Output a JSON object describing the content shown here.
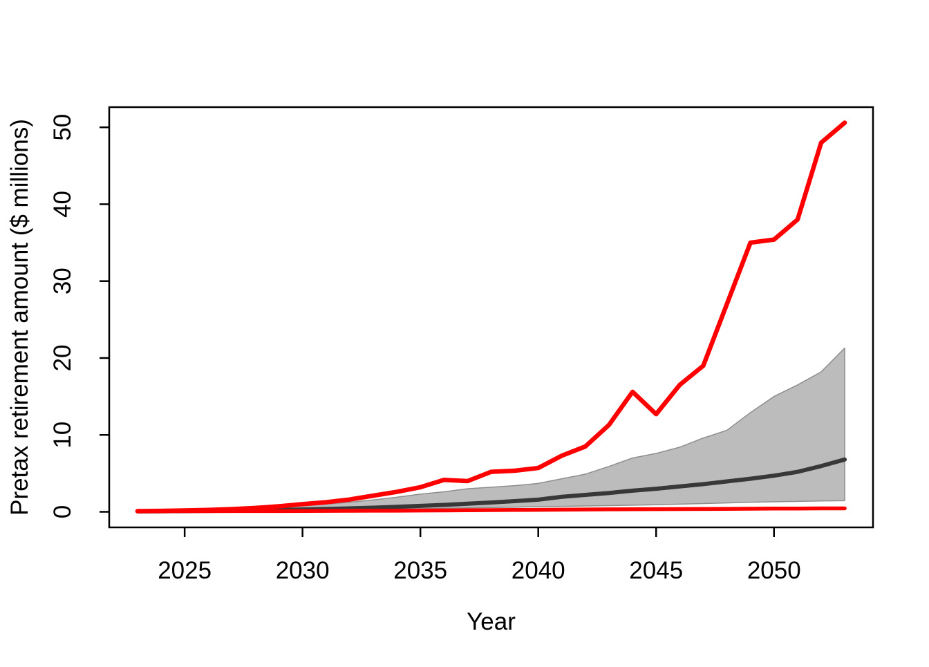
{
  "figure": {
    "background": "#ffffff",
    "title": ""
  },
  "chart_data": {
    "type": "line",
    "title": "",
    "xlabel": "Year",
    "ylabel": "Pretax retirement amount ($ millions)",
    "xlim": [
      2023,
      2053
    ],
    "ylim": [
      0,
      50.6
    ],
    "grid": false,
    "legend": null,
    "axis_color": "#000000",
    "x_ticks": [
      2025,
      2030,
      2035,
      2040,
      2045,
      2050
    ],
    "x_tick_labels": [
      "2025",
      "2030",
      "2035",
      "2040",
      "2045",
      "2050"
    ],
    "y_ticks": [
      0,
      10,
      20,
      30,
      40,
      50
    ],
    "y_tick_labels": [
      "0",
      "10",
      "20",
      "30",
      "40",
      "50"
    ],
    "x": [
      2023,
      2024,
      2025,
      2026,
      2027,
      2028,
      2029,
      2030,
      2031,
      2032,
      2033,
      2034,
      2035,
      2036,
      2037,
      2038,
      2039,
      2040,
      2041,
      2042,
      2043,
      2044,
      2045,
      2046,
      2047,
      2048,
      2049,
      2050,
      2051,
      2052,
      2053
    ],
    "band": {
      "name": "quantile-band",
      "fill": "#bcbcbc",
      "edge": "#8d8d8d",
      "upper": [
        0.1,
        0.13,
        0.18,
        0.25,
        0.33,
        0.45,
        0.6,
        0.8,
        1.0,
        1.25,
        1.55,
        1.9,
        2.3,
        2.6,
        3.0,
        3.2,
        3.4,
        3.7,
        4.3,
        4.9,
        5.9,
        7.0,
        7.6,
        8.4,
        9.6,
        10.6,
        12.9,
        15.0,
        16.5,
        18.2,
        21.3
      ],
      "lower": [
        0.07,
        0.08,
        0.09,
        0.11,
        0.13,
        0.15,
        0.18,
        0.21,
        0.24,
        0.28,
        0.32,
        0.36,
        0.41,
        0.46,
        0.51,
        0.56,
        0.61,
        0.66,
        0.71,
        0.76,
        0.81,
        0.86,
        0.92,
        1.0,
        1.08,
        1.16,
        1.24,
        1.3,
        1.36,
        1.41,
        1.45
      ]
    },
    "series": [
      {
        "name": "median-trajectory",
        "color": "#383838",
        "width": 6,
        "values": [
          0.05,
          0.07,
          0.09,
          0.12,
          0.15,
          0.19,
          0.24,
          0.3,
          0.37,
          0.45,
          0.54,
          0.65,
          0.77,
          0.9,
          1.05,
          1.21,
          1.39,
          1.58,
          1.95,
          2.2,
          2.45,
          2.75,
          3.0,
          3.3,
          3.6,
          3.95,
          4.3,
          4.7,
          5.2,
          5.95,
          6.8
        ]
      },
      {
        "name": "minimum-trajectory",
        "color": "#ff0000",
        "width": 5.5,
        "values": [
          0.08,
          0.08,
          0.09,
          0.09,
          0.1,
          0.1,
          0.1,
          0.11,
          0.12,
          0.13,
          0.14,
          0.15,
          0.17,
          0.18,
          0.2,
          0.22,
          0.24,
          0.26,
          0.28,
          0.3,
          0.32,
          0.33,
          0.35,
          0.36,
          0.37,
          0.38,
          0.4,
          0.42,
          0.43,
          0.45,
          0.45
        ]
      },
      {
        "name": "maximum-trajectory",
        "color": "#ff0000",
        "width": 6.5,
        "values": [
          0.09,
          0.12,
          0.18,
          0.25,
          0.35,
          0.5,
          0.72,
          1.0,
          1.25,
          1.6,
          2.1,
          2.6,
          3.2,
          4.15,
          4.0,
          5.2,
          5.35,
          5.7,
          7.3,
          8.5,
          11.3,
          15.6,
          12.7,
          16.5,
          19.0,
          27.0,
          35.0,
          35.4,
          38.0,
          48.0,
          50.6
        ]
      }
    ]
  }
}
